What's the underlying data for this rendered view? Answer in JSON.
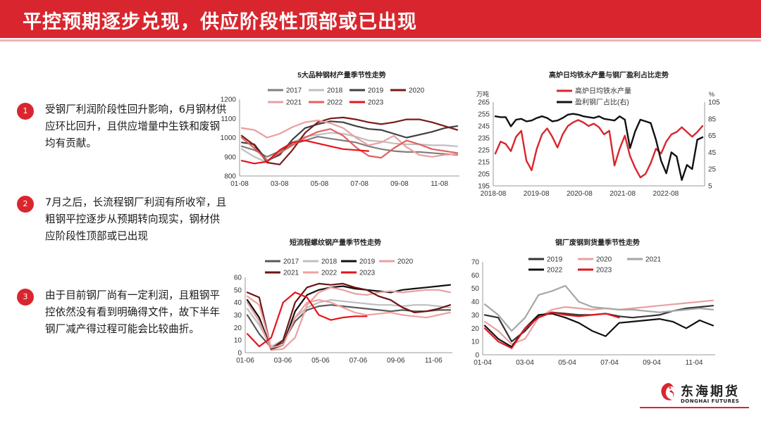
{
  "title": "平控预期逐步兑现，供应阶段性顶部或已出现",
  "points": [
    {
      "num": "1",
      "text": "受钢厂利润阶段性回升影响，6月钢材供应环比回升，且供应增量中生铁和废钢均有贡献。"
    },
    {
      "num": "2",
      "text": "7月之后，长流程钢厂利润有所收窄，且粗钢平控逐步从预期转向现实，钢材供应阶段性顶部或已出现"
    },
    {
      "num": "3",
      "text": "由于目前钢厂尚有一定利润，且粗钢平控依然没有看到明确得文件，故下半年钢厂减产得过程可能会比较曲折。"
    }
  ],
  "logo": {
    "cn": "东海期货",
    "en": "DONGHAI FUTURES"
  },
  "chart_data": [
    {
      "type": "line",
      "title": "5大品种钢材产量季节性走势",
      "x_ticks": [
        "01-08",
        "03-08",
        "05-08",
        "07-08",
        "09-08",
        "11-08"
      ],
      "ylim": [
        800,
        1200
      ],
      "y_ticks": [
        800,
        900,
        1000,
        1100,
        1200
      ],
      "legend": [
        "2017",
        "2018",
        "2019",
        "2020",
        "2021",
        "2022",
        "2023"
      ],
      "colors": [
        "#7f7f7f",
        "#bfbfbf",
        "#404040",
        "#7b1a1a",
        "#e8a0a0",
        "#e06060",
        "#e4141b"
      ],
      "series": [
        {
          "name": "2017",
          "values": [
            955,
            935,
            900,
            930,
            965,
            985,
            1005,
            995,
            985,
            975,
            955,
            940,
            930,
            925,
            925,
            920,
            915,
            910
          ]
        },
        {
          "name": "2018",
          "values": [
            940,
            900,
            870,
            935,
            975,
            1005,
            1015,
            1025,
            1020,
            1005,
            985,
            980,
            970,
            965,
            965,
            960,
            960,
            955
          ]
        },
        {
          "name": "2019",
          "values": [
            975,
            965,
            880,
            910,
            990,
            1050,
            1070,
            1085,
            1080,
            1060,
            1045,
            1040,
            1020,
            1000,
            1015,
            1030,
            1050,
            1060
          ]
        },
        {
          "name": "2020",
          "values": [
            1010,
            960,
            870,
            860,
            935,
            1025,
            1080,
            1100,
            1105,
            1095,
            1080,
            1070,
            1080,
            1095,
            1095,
            1080,
            1060,
            1040
          ]
        },
        {
          "name": "2021",
          "values": [
            1050,
            1040,
            1000,
            1020,
            1055,
            1080,
            1090,
            1075,
            1050,
            1000,
            960,
            975,
            1010,
            950,
            910,
            900,
            910,
            915
          ]
        },
        {
          "name": "2022",
          "values": [
            1000,
            945,
            880,
            920,
            960,
            1000,
            1030,
            1045,
            1010,
            950,
            905,
            895,
            945,
            985,
            965,
            940,
            930,
            920
          ]
        },
        {
          "name": "2023",
          "values": [
            880,
            865,
            875,
            935,
            975,
            985,
            970,
            955,
            940,
            935,
            930
          ]
        }
      ]
    },
    {
      "type": "line",
      "title": "高炉日均铁水产量与钢厂盈利占比走势",
      "x_ticks": [
        "2018-08",
        "2019-08",
        "2020-08",
        "2021-08",
        "2022-08"
      ],
      "left_unit": "万吨",
      "right_unit": "%",
      "ylim": [
        195,
        265
      ],
      "y_ticks": [
        195,
        205,
        215,
        225,
        235,
        245,
        255,
        265
      ],
      "y2lim": [
        5,
        105
      ],
      "y2_ticks": [
        5,
        25,
        45,
        65,
        85,
        105
      ],
      "legend": [
        "高炉日均铁水产量",
        "盈利钢厂占比(右)"
      ],
      "colors": [
        "#d9262e",
        "#111111"
      ],
      "series": [
        {
          "name": "高炉日均铁水产量",
          "axis": "left",
          "values": [
            222,
            232,
            230,
            224,
            236,
            241,
            216,
            208,
            226,
            238,
            243,
            236,
            227,
            238,
            245,
            248,
            250,
            248,
            245,
            247,
            244,
            238,
            241,
            212,
            226,
            237,
            220,
            210,
            202,
            205,
            214,
            226,
            222,
            232,
            238,
            240,
            244,
            240,
            236,
            240,
            245
          ]
        },
        {
          "name": "盈利钢厂占比(右)",
          "axis": "right",
          "values": [
            88,
            87,
            87,
            76,
            84,
            85,
            82,
            83,
            86,
            88,
            86,
            82,
            83,
            86,
            90,
            91,
            90,
            88,
            87,
            86,
            88,
            85,
            84,
            83,
            88,
            84,
            50,
            70,
            84,
            82,
            80,
            60,
            35,
            20,
            45,
            40,
            12,
            30,
            25,
            60,
            63
          ]
        }
      ]
    },
    {
      "type": "line",
      "title": "短流程螺纹钢产量季节性走势",
      "x_ticks": [
        "01-06",
        "03-06",
        "05-06",
        "07-06",
        "09-06",
        "11-06"
      ],
      "ylim": [
        0,
        60
      ],
      "y_ticks": [
        0,
        10,
        20,
        30,
        40,
        50,
        60
      ],
      "legend": [
        "2017",
        "2018",
        "2019",
        "2020",
        "2021",
        "2022",
        "2023"
      ],
      "colors": [
        "#595959",
        "#bfbfbf",
        "#111111",
        "#e8a0a0",
        "#6e1414",
        "#f0a0a0",
        "#e4141b"
      ],
      "series": [
        {
          "name": "2017",
          "values": [
            30,
            15,
            4,
            8,
            25,
            34,
            37,
            38,
            37,
            36,
            35,
            34,
            33,
            34,
            33,
            33,
            34,
            34
          ]
        },
        {
          "name": "2018",
          "values": [
            35,
            22,
            5,
            10,
            28,
            36,
            40,
            42,
            41,
            40,
            39,
            38,
            38,
            37,
            38,
            38,
            37,
            36
          ]
        },
        {
          "name": "2019",
          "values": [
            42,
            28,
            3,
            6,
            33,
            46,
            50,
            52,
            53,
            51,
            50,
            49,
            48,
            50,
            51,
            52,
            53,
            54
          ]
        },
        {
          "name": "2020",
          "values": [
            40,
            25,
            2,
            3,
            12,
            38,
            48,
            52,
            50,
            47,
            46,
            48,
            49,
            48,
            49,
            50,
            50,
            48
          ]
        },
        {
          "name": "2021",
          "values": [
            48,
            44,
            3,
            10,
            40,
            52,
            55,
            54,
            55,
            52,
            50,
            45,
            42,
            36,
            32,
            33,
            35,
            38
          ]
        },
        {
          "name": "2022",
          "values": [
            45,
            38,
            4,
            6,
            28,
            40,
            42,
            40,
            36,
            32,
            30,
            31,
            32,
            30,
            29,
            28,
            30,
            32
          ]
        },
        {
          "name": "2023",
          "values": [
            15,
            5,
            12,
            40,
            48,
            44,
            30,
            26,
            28,
            29,
            29
          ]
        }
      ]
    },
    {
      "type": "line",
      "title": "钢厂废钢到货量季节性走势",
      "x_ticks": [
        "01-04",
        "03-04",
        "05-04",
        "07-04",
        "09-04",
        "11-04"
      ],
      "ylim": [
        0,
        70
      ],
      "y_ticks": [
        0,
        10,
        20,
        30,
        40,
        50,
        60,
        70
      ],
      "legend": [
        "2019",
        "2020",
        "2021",
        "2022",
        "2023"
      ],
      "colors": [
        "#333333",
        "#e8a0a0",
        "#a6a6a6",
        "#111111",
        "#e4141b"
      ],
      "series": [
        {
          "name": "2019",
          "values": [
            30,
            28,
            10,
            18,
            29,
            32,
            31,
            30,
            30,
            31,
            29,
            28,
            29,
            30,
            33,
            35,
            36,
            37
          ]
        },
        {
          "name": "2020",
          "values": [
            25,
            18,
            8,
            12,
            28,
            34,
            36,
            35,
            34,
            35,
            34,
            35,
            36,
            37,
            38,
            39,
            40,
            41
          ]
        },
        {
          "name": "2021",
          "values": [
            38,
            30,
            18,
            28,
            45,
            48,
            52,
            40,
            36,
            35,
            34,
            34,
            33,
            32,
            33,
            34,
            35,
            34
          ]
        },
        {
          "name": "2022",
          "values": [
            22,
            12,
            6,
            20,
            30,
            31,
            28,
            24,
            18,
            14,
            24,
            25,
            26,
            27,
            25,
            20,
            26,
            22
          ]
        },
        {
          "name": "2023",
          "values": [
            20,
            10,
            5,
            20,
            28,
            32,
            30,
            29,
            30,
            31,
            28
          ]
        }
      ]
    }
  ]
}
